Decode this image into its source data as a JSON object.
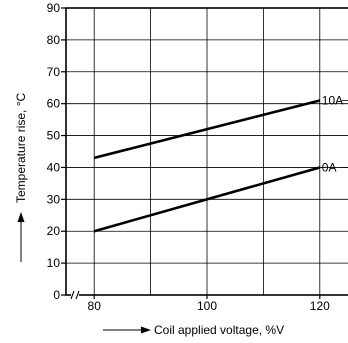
{
  "chart_data": {
    "type": "line",
    "xlabel": "Coil applied voltage, %V",
    "ylabel": "Temperature rise, °C",
    "xlim": [
      75,
      125
    ],
    "ylim": [
      0,
      90
    ],
    "xticks": [
      80,
      100,
      120
    ],
    "yticks": [
      0,
      10,
      20,
      30,
      40,
      50,
      60,
      70,
      80,
      90
    ],
    "grid": true,
    "axis_break": "x-axis near origin",
    "series": [
      {
        "name": "10A",
        "x": [
          80,
          120
        ],
        "y": [
          43,
          61
        ]
      },
      {
        "name": "0A",
        "x": [
          80,
          120
        ],
        "y": [
          20,
          40
        ]
      }
    ]
  }
}
